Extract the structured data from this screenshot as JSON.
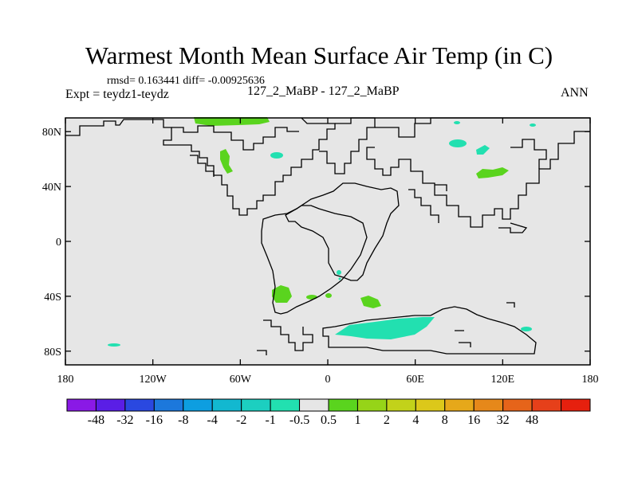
{
  "title": "Warmest Month Mean Surface Air Temp (in C)",
  "stats_line": "rmsd= 0.163441 diff= -0.00925636",
  "experiment_label": "Expt = teydz1-teydz",
  "center_label": "127_2_MaBP - 127_2_MaBP",
  "period_label": "ANN",
  "lat_ticks": [
    {
      "lat": 80,
      "label": "80N"
    },
    {
      "lat": 40,
      "label": "40N"
    },
    {
      "lat": 0,
      "label": "0"
    },
    {
      "lat": -40,
      "label": "40S"
    },
    {
      "lat": -80,
      "label": "80S"
    }
  ],
  "lon_ticks": [
    {
      "lon": -180,
      "label": "180"
    },
    {
      "lon": -120,
      "label": "120W"
    },
    {
      "lon": -60,
      "label": "60W"
    },
    {
      "lon": 0,
      "label": "0"
    },
    {
      "lon": 60,
      "label": "60E"
    },
    {
      "lon": 120,
      "label": "120E"
    },
    {
      "lon": 180,
      "label": "180"
    }
  ],
  "colorbar": {
    "colors": [
      "#8a19e6",
      "#5a1ee6",
      "#2a48e0",
      "#1c78dc",
      "#0d9ee0",
      "#12b8d0",
      "#1ccfc0",
      "#22e0b0",
      "#e6e6e6",
      "#5ad41e",
      "#96d418",
      "#c2d21a",
      "#dcc81a",
      "#e6a81a",
      "#e6881a",
      "#e6641a",
      "#e6401a",
      "#e6200e"
    ],
    "labels": [
      "-48",
      "-32",
      "-16",
      "-8",
      "-4",
      "-2",
      "-1",
      "-0.5",
      "0.5",
      "1",
      "2",
      "4",
      "8",
      "16",
      "32",
      "48"
    ]
  },
  "colors": {
    "background": "#e6e6e6",
    "cooling": "#22e0b0",
    "warming": "#5ad41e",
    "coastline": "#000000"
  },
  "anomaly_regions": [
    {
      "name": "arctic-canada-warm",
      "level": "1",
      "lon": -80,
      "lat": 78
    },
    {
      "name": "hudson-cool",
      "level": "-0.5",
      "lon": -35,
      "lat": 55
    },
    {
      "name": "north-america-warm",
      "level": "1",
      "lon": -68,
      "lat": 52
    },
    {
      "name": "siberia-cool",
      "level": "-0.5",
      "lon": 90,
      "lat": 62
    },
    {
      "name": "central-asia-cool",
      "level": "-0.5",
      "lon": 105,
      "lat": 58
    },
    {
      "name": "east-asia-warm",
      "level": "1",
      "lon": 115,
      "lat": 43
    },
    {
      "name": "south-america-warm",
      "level": "1",
      "lon": -33,
      "lat": -40
    },
    {
      "name": "south-atlantic-warm",
      "level": "1",
      "lon": 30,
      "lat": -46
    },
    {
      "name": "antarctic-cool",
      "level": "-0.5",
      "lon": 42,
      "lat": -65
    },
    {
      "name": "east-antarctic-cool",
      "level": "-0.5",
      "lon": 137,
      "lat": -64
    }
  ]
}
